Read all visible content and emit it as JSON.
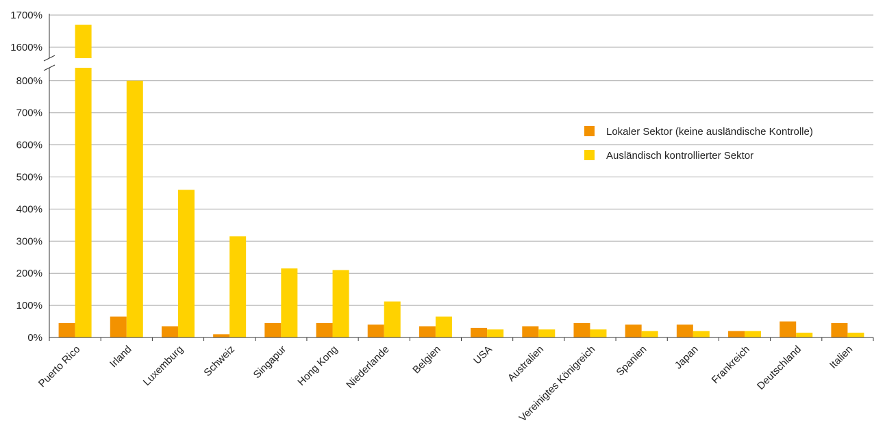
{
  "chart_data": {
    "type": "bar",
    "title": "",
    "xlabel": "",
    "ylabel": "",
    "y_tick_labels_lower": [
      "0%",
      "100%",
      "200%",
      "300%",
      "400%",
      "500%",
      "600%",
      "700%",
      "800%"
    ],
    "y_tick_labels_upper": [
      "1600%",
      "1700%"
    ],
    "y_axis_break": [
      840,
      1565
    ],
    "ylim": [
      0,
      1700
    ],
    "grid": true,
    "legend_position": "right",
    "categories": [
      "Puerto Rico",
      "Irland",
      "Luxemburg",
      "Schweiz",
      "Singapur",
      "Hong Kong",
      "Niederlande",
      "Belgien",
      "USA",
      "Australien",
      "Vereinigtes Königreich",
      "Spanien",
      "Japan",
      "Frankreich",
      "Deutschland",
      "Italien"
    ],
    "series": [
      {
        "name": "Lokaler Sektor (keine ausländische Kontrolle)",
        "color": "#f39200",
        "values": [
          45,
          65,
          35,
          10,
          45,
          45,
          40,
          35,
          30,
          35,
          45,
          40,
          40,
          20,
          50,
          45
        ]
      },
      {
        "name": "Ausländisch kontrollierter Sektor",
        "color": "#ffd200",
        "values": [
          1670,
          800,
          460,
          315,
          215,
          210,
          112,
          65,
          25,
          25,
          25,
          20,
          20,
          20,
          15,
          15
        ]
      }
    ]
  }
}
